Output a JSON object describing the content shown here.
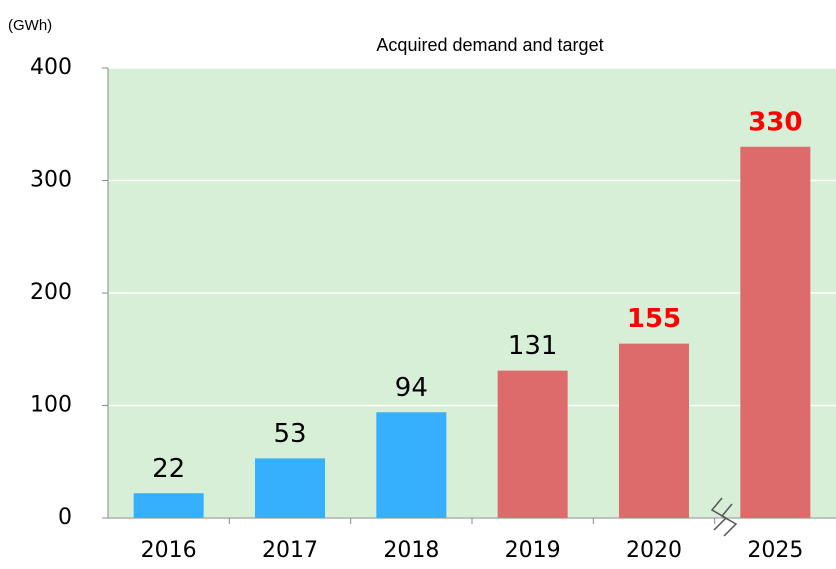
{
  "chart_data": {
    "type": "bar",
    "title": "Acquired demand and target",
    "y_label": "(GWh)",
    "categories": [
      "2016",
      "2017",
      "2018",
      "2019",
      "2020",
      "2025"
    ],
    "values": [
      22,
      53,
      94,
      131,
      155,
      330
    ],
    "colors": [
      "#36b0fc",
      "#36b0fc",
      "#36b0fc",
      "#de6b6b",
      "#de6b6b",
      "#de6b6b"
    ],
    "label_colors": [
      "#000000",
      "#000000",
      "#000000",
      "#000000",
      "#ff0000",
      "#ff0000"
    ],
    "ylim": [
      0,
      400
    ],
    "yticks": [
      0,
      100,
      200,
      300,
      400
    ],
    "grid": true,
    "background": "#d6efd6"
  }
}
